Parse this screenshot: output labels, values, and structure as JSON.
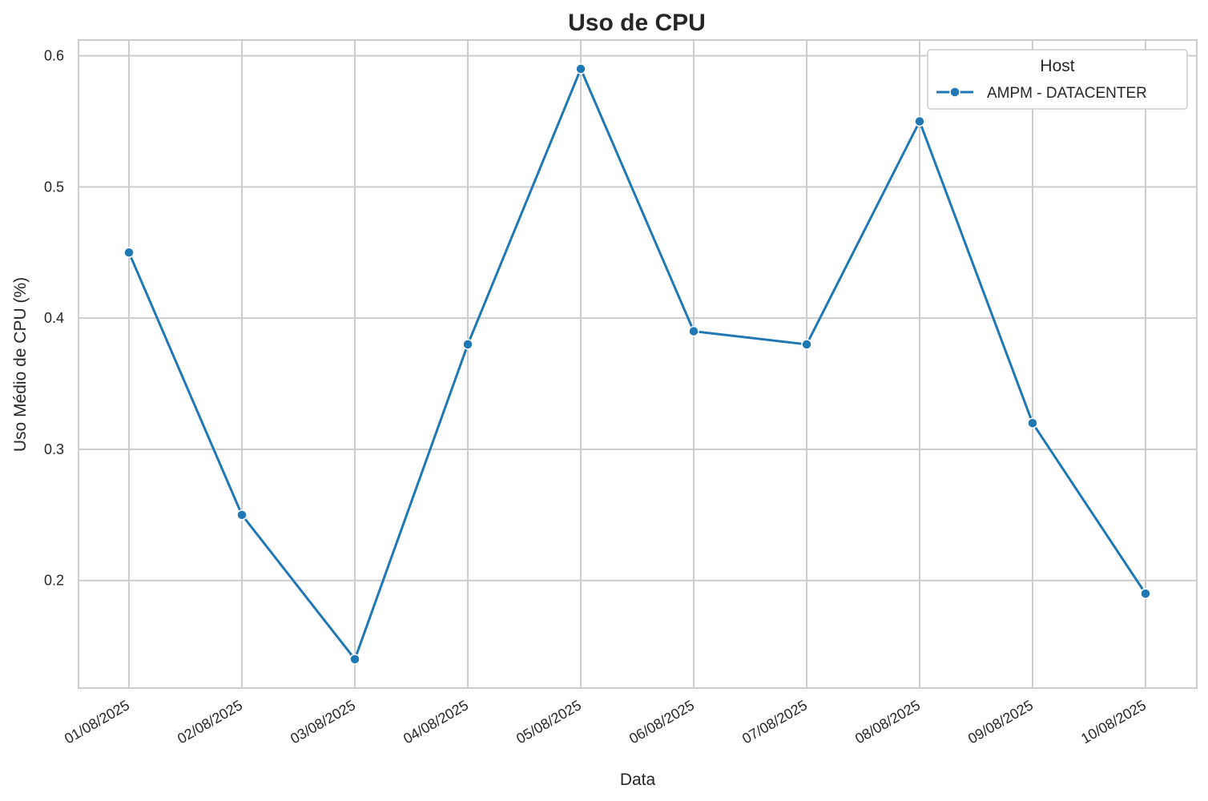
{
  "chart_data": {
    "type": "line",
    "title": "Uso de CPU",
    "xlabel": "Data",
    "ylabel": "Uso Médio de CPU (%)",
    "categories": [
      "01/08/2025",
      "02/08/2025",
      "03/08/2025",
      "04/08/2025",
      "05/08/2025",
      "06/08/2025",
      "07/08/2025",
      "08/08/2025",
      "09/08/2025",
      "10/08/2025"
    ],
    "y_ticks": [
      "0.2",
      "0.3",
      "0.4",
      "0.5",
      "0.6"
    ],
    "ylim": [
      0.118,
      0.612
    ],
    "grid": true,
    "legend": {
      "title": "Host",
      "placement": "top-right"
    },
    "series": [
      {
        "name": "AMPM - DATACENTER",
        "color": "#1f77b4",
        "values": [
          0.45,
          0.25,
          0.14,
          0.38,
          0.59,
          0.39,
          0.38,
          0.55,
          0.32,
          0.19
        ]
      }
    ]
  }
}
